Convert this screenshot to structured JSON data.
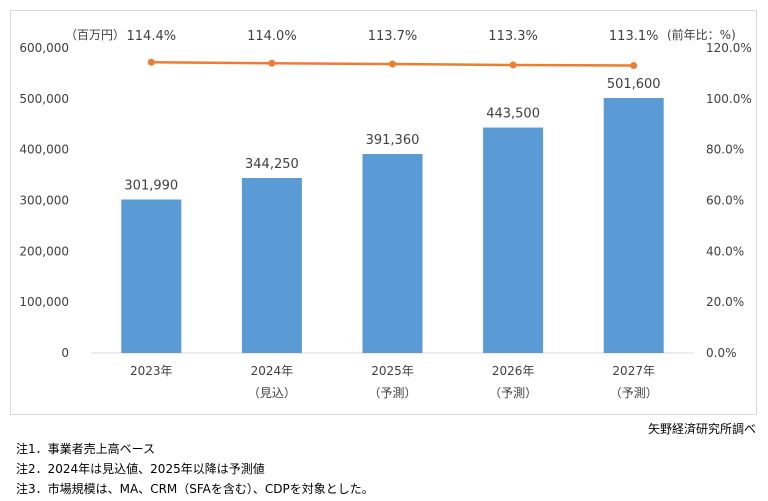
{
  "units": {
    "left": "（百万円）",
    "right": "(前年比：%)"
  },
  "source": "矢野経済研究所調べ",
  "notes": [
    "注1．事業者売上高ベース",
    "注2．2024年は見込値、2025年以降は予測値",
    "注3．市場規模は、MA、CRM（SFAを含む）、CDPを対象とした。"
  ],
  "colors": {
    "bar": "#5b9bd5",
    "line": "#ed7d31",
    "grid": "#d9d9d9",
    "text": "#404040"
  },
  "chart_data": {
    "type": "bar",
    "categories": [
      {
        "year": "2023年",
        "sub": ""
      },
      {
        "year": "2024年",
        "sub": "（見込）"
      },
      {
        "year": "2025年",
        "sub": "（予測）"
      },
      {
        "year": "2026年",
        "sub": "（予測）"
      },
      {
        "year": "2027年",
        "sub": "（予測）"
      }
    ],
    "series": [
      {
        "values": [
          301990,
          344250,
          391360,
          443500,
          501600
        ],
        "labels": [
          "301,990",
          "344,250",
          "391,360",
          "443,500",
          "501,600"
        ],
        "axis": "left",
        "type": "bar"
      },
      {
        "values": [
          114.4,
          114.0,
          113.7,
          113.3,
          113.1
        ],
        "labels": [
          "114.4%",
          "114.0%",
          "113.7%",
          "113.3%",
          "113.1%"
        ],
        "axis": "right",
        "type": "line"
      }
    ],
    "y_left": {
      "ylim": [
        0,
        600000
      ],
      "ticks": [
        "0",
        "100,000",
        "200,000",
        "300,000",
        "400,000",
        "500,000",
        "600,000"
      ]
    },
    "y_right": {
      "ylim": [
        0,
        120
      ],
      "ticks": [
        "0.0%",
        "20.0%",
        "40.0%",
        "60.0%",
        "80.0%",
        "100.0%",
        "120.0%"
      ]
    },
    "grid": false
  }
}
